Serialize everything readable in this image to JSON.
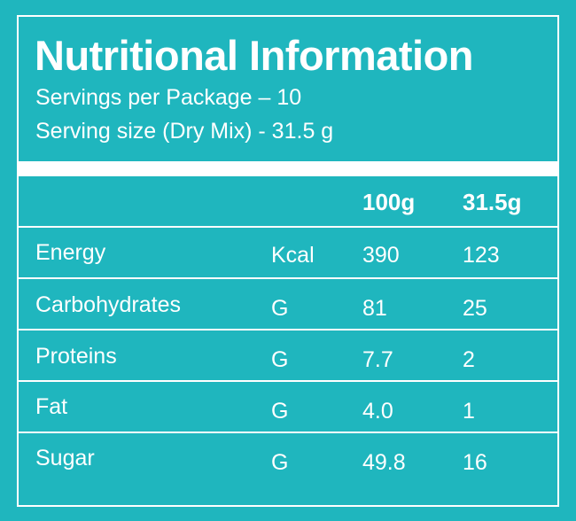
{
  "title": "Nutritional Information",
  "servings_per_package": "Servings per Package – 10",
  "serving_size": "Serving size (Dry Mix) - 31.5 g",
  "columns": {
    "per_100g": "100g",
    "per_serving": "31.5g"
  },
  "rows": [
    {
      "name": "Energy",
      "unit": "Kcal",
      "per_100g": "390",
      "per_serving": "123"
    },
    {
      "name": "Carbohydrates",
      "unit": "G",
      "per_100g": "81",
      "per_serving": "25"
    },
    {
      "name": "Proteins",
      "unit": "G",
      "per_100g": "7.7",
      "per_serving": "2"
    },
    {
      "name": "Fat",
      "unit": "G",
      "per_100g": "4.0",
      "per_serving": "1"
    },
    {
      "name": "Sugar",
      "unit": "G",
      "per_100g": "49.8",
      "per_serving": "16"
    }
  ],
  "colors": {
    "background": "#1fb6be",
    "text": "#ffffff"
  }
}
